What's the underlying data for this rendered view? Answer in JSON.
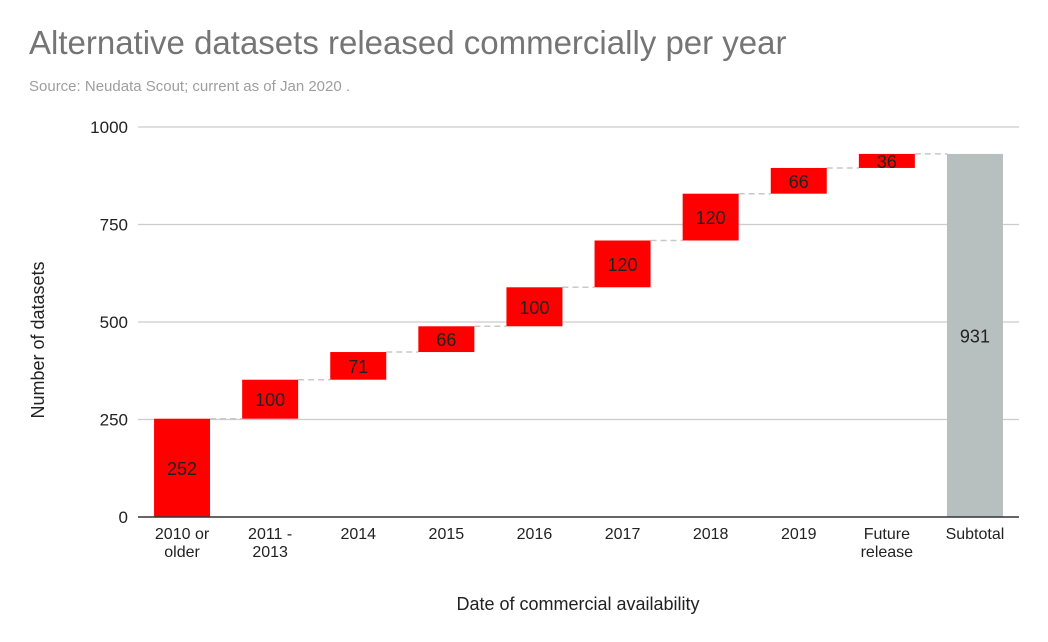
{
  "header": {
    "title": "Alternative datasets released commercially per year",
    "subtitle": "Source: Neudata Scout; current as of Jan 2020 ."
  },
  "chart_data": {
    "type": "waterfall",
    "title": "Alternative datasets released commercially per year",
    "subtitle": "Source: Neudata Scout; current as of Jan 2020 .",
    "xlabel": "Date of commercial availability",
    "ylabel": "Number of datasets",
    "ylim": [
      0,
      1000
    ],
    "yticks": [
      0,
      250,
      500,
      750,
      1000
    ],
    "grid": true,
    "categories": [
      [
        "2010 or",
        "older"
      ],
      [
        "2011 -",
        "2013"
      ],
      [
        "2014"
      ],
      [
        "2015"
      ],
      [
        "2016"
      ],
      [
        "2017"
      ],
      [
        "2018"
      ],
      [
        "2019"
      ],
      [
        "Future",
        "release"
      ],
      [
        "Subtotal"
      ]
    ],
    "values": [
      252,
      100,
      71,
      66,
      100,
      120,
      120,
      66,
      36,
      931
    ],
    "subtotal_index": 9,
    "colors": {
      "increase": "#ff0000",
      "subtotal": "#b7c0bf",
      "grid": "#cccccc",
      "connector": "#c8c8c8",
      "axis": "#333333"
    }
  }
}
